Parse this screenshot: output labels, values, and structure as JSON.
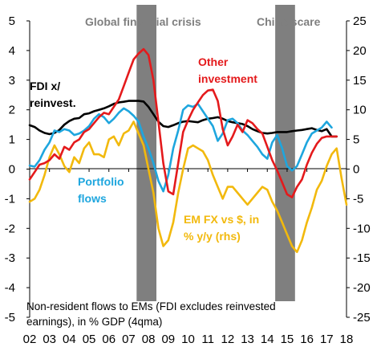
{
  "chart_data": {
    "type": "line",
    "x_range": [
      2,
      18
    ],
    "x_ticks": [
      "02",
      "03",
      "04",
      "05",
      "06",
      "07",
      "08",
      "09",
      "10",
      "11",
      "12",
      "13",
      "14",
      "15",
      "16",
      "17",
      "18"
    ],
    "ylim_left": [
      -5,
      5
    ],
    "y_ticks_left": [
      "5",
      "4",
      "3",
      "2",
      "1",
      "0",
      "-1",
      "-2",
      "-3",
      "-4",
      "-5"
    ],
    "ylim_right": [
      -25,
      25
    ],
    "y_ticks_right": [
      "25",
      "20",
      "15",
      "10",
      "5",
      "0",
      "-5",
      "-10",
      "-15",
      "-20",
      "-25"
    ],
    "grid": false,
    "bands": [
      {
        "label": "Global financial crisis",
        "from": 7.4,
        "to": 8.4
      },
      {
        "label": "China scare",
        "from": 14.4,
        "to": 15.4
      }
    ],
    "footnote": [
      "Non-resident flows to EMs (FDI excludes reinvested",
      "earnings), in % GDP (4qma)"
    ],
    "series": [
      {
        "name": "FDI x/ reinvest.",
        "label_lines": [
          "FDI x/",
          "reinvest."
        ],
        "color": "#000000",
        "axis": "left",
        "points": [
          [
            2.0,
            1.48
          ],
          [
            2.25,
            1.42
          ],
          [
            2.5,
            1.3
          ],
          [
            2.75,
            1.22
          ],
          [
            3.0,
            1.18
          ],
          [
            3.25,
            1.22
          ],
          [
            3.5,
            1.32
          ],
          [
            3.75,
            1.5
          ],
          [
            4.0,
            1.62
          ],
          [
            4.25,
            1.7
          ],
          [
            4.5,
            1.72
          ],
          [
            4.75,
            1.85
          ],
          [
            5.0,
            1.88
          ],
          [
            5.25,
            1.95
          ],
          [
            5.5,
            2.0
          ],
          [
            5.75,
            2.05
          ],
          [
            6.0,
            2.12
          ],
          [
            6.25,
            2.2
          ],
          [
            6.5,
            2.25
          ],
          [
            6.75,
            2.27
          ],
          [
            7.0,
            2.3
          ],
          [
            7.25,
            2.3
          ],
          [
            7.5,
            2.3
          ],
          [
            7.75,
            2.28
          ],
          [
            8.0,
            2.1
          ],
          [
            8.25,
            1.85
          ],
          [
            8.5,
            1.6
          ],
          [
            8.75,
            1.45
          ],
          [
            9.0,
            1.42
          ],
          [
            9.25,
            1.48
          ],
          [
            9.5,
            1.55
          ],
          [
            9.75,
            1.6
          ],
          [
            10.0,
            1.62
          ],
          [
            10.25,
            1.6
          ],
          [
            10.5,
            1.58
          ],
          [
            10.75,
            1.65
          ],
          [
            11.0,
            1.7
          ],
          [
            11.25,
            1.72
          ],
          [
            11.5,
            1.75
          ],
          [
            11.75,
            1.7
          ],
          [
            12.0,
            1.62
          ],
          [
            12.25,
            1.58
          ],
          [
            12.5,
            1.55
          ],
          [
            12.75,
            1.52
          ],
          [
            13.0,
            1.45
          ],
          [
            13.25,
            1.35
          ],
          [
            13.5,
            1.28
          ],
          [
            13.75,
            1.22
          ],
          [
            14.0,
            1.2
          ],
          [
            14.25,
            1.22
          ],
          [
            14.5,
            1.25
          ],
          [
            14.75,
            1.25
          ],
          [
            15.0,
            1.25
          ],
          [
            15.25,
            1.28
          ],
          [
            15.5,
            1.3
          ],
          [
            15.75,
            1.32
          ],
          [
            16.0,
            1.35
          ],
          [
            16.25,
            1.38
          ],
          [
            16.5,
            1.32
          ],
          [
            16.75,
            1.28
          ],
          [
            17.0,
            1.35
          ],
          [
            17.25,
            1.1
          ],
          [
            17.5,
            1.1
          ]
        ]
      },
      {
        "name": "Other investment",
        "label_lines": [
          "Other",
          "investment"
        ],
        "color": "#e41a1c",
        "axis": "left",
        "points": [
          [
            2.0,
            -0.35
          ],
          [
            2.25,
            -0.1
          ],
          [
            2.5,
            0.15
          ],
          [
            2.75,
            0.2
          ],
          [
            3.0,
            0.3
          ],
          [
            3.25,
            0.5
          ],
          [
            3.5,
            0.35
          ],
          [
            3.75,
            0.75
          ],
          [
            4.0,
            0.65
          ],
          [
            4.25,
            0.9
          ],
          [
            4.5,
            1.0
          ],
          [
            4.75,
            1.25
          ],
          [
            5.0,
            1.35
          ],
          [
            5.25,
            1.55
          ],
          [
            5.5,
            1.75
          ],
          [
            5.75,
            1.9
          ],
          [
            6.0,
            1.85
          ],
          [
            6.25,
            2.1
          ],
          [
            6.5,
            2.35
          ],
          [
            6.75,
            2.8
          ],
          [
            7.0,
            3.25
          ],
          [
            7.25,
            3.7
          ],
          [
            7.5,
            3.9
          ],
          [
            7.75,
            4.05
          ],
          [
            8.0,
            3.85
          ],
          [
            8.25,
            3.0
          ],
          [
            8.5,
            1.6
          ],
          [
            8.75,
            0.2
          ],
          [
            9.0,
            -0.75
          ],
          [
            9.25,
            -0.85
          ],
          [
            9.5,
            0.2
          ],
          [
            9.75,
            1.25
          ],
          [
            10.0,
            1.65
          ],
          [
            10.25,
            2.0
          ],
          [
            10.5,
            2.25
          ],
          [
            10.75,
            2.5
          ],
          [
            11.0,
            2.65
          ],
          [
            11.25,
            2.68
          ],
          [
            11.5,
            2.3
          ],
          [
            11.75,
            1.35
          ],
          [
            12.0,
            0.8
          ],
          [
            12.25,
            1.1
          ],
          [
            12.5,
            1.5
          ],
          [
            12.75,
            1.25
          ],
          [
            13.0,
            1.65
          ],
          [
            13.25,
            1.55
          ],
          [
            13.5,
            1.35
          ],
          [
            13.75,
            1.2
          ],
          [
            14.0,
            0.75
          ],
          [
            14.25,
            0.3
          ],
          [
            14.5,
            -0.05
          ],
          [
            14.75,
            -0.45
          ],
          [
            15.0,
            -0.85
          ],
          [
            15.25,
            -0.95
          ],
          [
            15.5,
            -0.6
          ],
          [
            15.75,
            -0.35
          ],
          [
            16.0,
            0.15
          ],
          [
            16.25,
            0.55
          ],
          [
            16.5,
            0.85
          ],
          [
            16.75,
            1.05
          ],
          [
            17.0,
            1.1
          ],
          [
            17.25,
            1.1
          ],
          [
            17.5,
            1.1
          ]
        ]
      },
      {
        "name": "Portfolio flows",
        "label_lines": [
          "Portfolio",
          "flows"
        ],
        "color": "#1ea6de",
        "axis": "left",
        "points": [
          [
            2.0,
            0.12
          ],
          [
            2.25,
            0.08
          ],
          [
            2.5,
            0.3
          ],
          [
            2.75,
            0.65
          ],
          [
            3.0,
            0.9
          ],
          [
            3.25,
            1.3
          ],
          [
            3.5,
            1.25
          ],
          [
            3.75,
            1.35
          ],
          [
            4.0,
            1.3
          ],
          [
            4.25,
            1.15
          ],
          [
            4.5,
            1.2
          ],
          [
            4.75,
            1.3
          ],
          [
            5.0,
            1.45
          ],
          [
            5.25,
            1.7
          ],
          [
            5.5,
            1.85
          ],
          [
            5.75,
            1.75
          ],
          [
            6.0,
            1.55
          ],
          [
            6.25,
            1.7
          ],
          [
            6.5,
            1.9
          ],
          [
            6.75,
            2.05
          ],
          [
            7.0,
            1.95
          ],
          [
            7.25,
            1.8
          ],
          [
            7.5,
            1.6
          ],
          [
            7.75,
            1.1
          ],
          [
            8.0,
            0.7
          ],
          [
            8.25,
            0.2
          ],
          [
            8.5,
            -0.4
          ],
          [
            8.75,
            -0.75
          ],
          [
            9.0,
            -0.2
          ],
          [
            9.25,
            0.7
          ],
          [
            9.5,
            1.3
          ],
          [
            9.75,
            2.0
          ],
          [
            10.0,
            2.15
          ],
          [
            10.25,
            2.1
          ],
          [
            10.5,
            2.2
          ],
          [
            10.75,
            1.95
          ],
          [
            11.0,
            1.7
          ],
          [
            11.25,
            1.45
          ],
          [
            11.5,
            0.95
          ],
          [
            11.75,
            1.2
          ],
          [
            12.0,
            1.65
          ],
          [
            12.25,
            1.7
          ],
          [
            12.5,
            1.55
          ],
          [
            12.75,
            1.3
          ],
          [
            13.0,
            1.15
          ],
          [
            13.25,
            0.95
          ],
          [
            13.5,
            0.75
          ],
          [
            13.75,
            0.5
          ],
          [
            14.0,
            0.35
          ],
          [
            14.25,
            0.9
          ],
          [
            14.5,
            1.15
          ],
          [
            14.75,
            0.7
          ],
          [
            15.0,
            0.1
          ],
          [
            15.25,
            -0.05
          ],
          [
            15.5,
            0.1
          ],
          [
            15.75,
            0.5
          ],
          [
            16.0,
            0.9
          ],
          [
            16.25,
            1.2
          ],
          [
            16.5,
            1.3
          ],
          [
            16.75,
            1.4
          ],
          [
            17.0,
            1.6
          ],
          [
            17.25,
            1.4
          ]
        ]
      },
      {
        "name": "EM FX vs $, in % y/y (rhs)",
        "label_lines": [
          "EM FX vs $, in",
          "% y/y (rhs)"
        ],
        "color": "#f2b90d",
        "axis": "right",
        "points": [
          [
            2.0,
            -5.5
          ],
          [
            2.25,
            -5.0
          ],
          [
            2.5,
            -3.5
          ],
          [
            2.75,
            -1.0
          ],
          [
            3.0,
            2.0
          ],
          [
            3.25,
            4.0
          ],
          [
            3.5,
            2.5
          ],
          [
            3.75,
            0.5
          ],
          [
            4.0,
            -0.5
          ],
          [
            4.25,
            2.0
          ],
          [
            4.5,
            1.0
          ],
          [
            4.75,
            3.5
          ],
          [
            5.0,
            4.5
          ],
          [
            5.25,
            2.5
          ],
          [
            5.5,
            2.5
          ],
          [
            5.75,
            2.0
          ],
          [
            6.0,
            5.0
          ],
          [
            6.25,
            5.5
          ],
          [
            6.5,
            4.0
          ],
          [
            6.75,
            6.0
          ],
          [
            7.0,
            6.5
          ],
          [
            7.25,
            8.0
          ],
          [
            7.5,
            6.0
          ],
          [
            7.75,
            4.0
          ],
          [
            8.0,
            0.0
          ],
          [
            8.25,
            -4.0
          ],
          [
            8.5,
            -10.0
          ],
          [
            8.75,
            -13.0
          ],
          [
            9.0,
            -12.0
          ],
          [
            9.25,
            -9.0
          ],
          [
            9.5,
            -4.0
          ],
          [
            9.75,
            0.0
          ],
          [
            10.0,
            3.5
          ],
          [
            10.25,
            4.0
          ],
          [
            10.5,
            3.5
          ],
          [
            10.75,
            3.0
          ],
          [
            11.0,
            1.5
          ],
          [
            11.25,
            -1.0
          ],
          [
            11.5,
            -3.0
          ],
          [
            11.75,
            -5.0
          ],
          [
            12.0,
            -3.0
          ],
          [
            12.25,
            -3.0
          ],
          [
            12.5,
            -4.0
          ],
          [
            12.75,
            -5.0
          ],
          [
            13.0,
            -6.0
          ],
          [
            13.25,
            -5.0
          ],
          [
            13.5,
            -4.0
          ],
          [
            13.75,
            -3.0
          ],
          [
            14.0,
            -3.5
          ],
          [
            14.25,
            -5.5
          ],
          [
            14.5,
            -7.0
          ],
          [
            14.75,
            -9.0
          ],
          [
            15.0,
            -11.0
          ],
          [
            15.25,
            -13.0
          ],
          [
            15.5,
            -14.0
          ],
          [
            15.75,
            -12.0
          ],
          [
            16.0,
            -9.0
          ],
          [
            16.25,
            -6.5
          ],
          [
            16.5,
            -3.5
          ],
          [
            16.75,
            -2.0
          ],
          [
            17.0,
            0.5
          ],
          [
            17.25,
            2.5
          ],
          [
            17.5,
            3.5
          ],
          [
            17.75,
            -1.5
          ],
          [
            18.0,
            -6.0
          ]
        ]
      }
    ]
  }
}
